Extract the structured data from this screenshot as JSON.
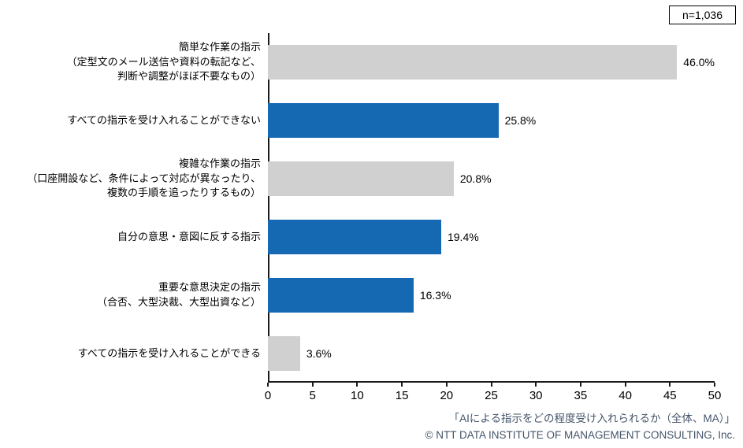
{
  "header": {
    "n_label": "n=1,036"
  },
  "chart_data": {
    "type": "bar",
    "orientation": "horizontal",
    "title": "",
    "xlabel": "",
    "ylabel": "",
    "xlim": [
      0,
      50
    ],
    "x_ticks": [
      0,
      5,
      10,
      15,
      20,
      25,
      30,
      35,
      40,
      45,
      50
    ],
    "grid": false,
    "legend": "none",
    "categories": [
      "簡単な作業の指示\n（定型文のメール送信や資料の転記など、\n判断や調整がほぼ不要なもの）",
      "すべての指示を受け入れることができない",
      "複雑な作業の指示\n（口座開設など、条件によって対応が異なったり、\n複数の手順を追ったりするもの）",
      "自分の意思・意図に反する指示",
      "重要な意思決定の指示\n（合否、大型決裁、大型出資など）",
      "すべての指示を受け入れることができる"
    ],
    "values": [
      46.0,
      25.8,
      20.8,
      19.4,
      16.3,
      3.6
    ],
    "value_labels": [
      "46.0%",
      "25.8%",
      "20.8%",
      "19.4%",
      "16.3%",
      "3.6%"
    ],
    "colors": [
      "gray",
      "blue",
      "gray",
      "blue",
      "blue",
      "gray"
    ],
    "palette": {
      "blue": "#1568b2",
      "gray": "#d0d0d0"
    }
  },
  "footer": {
    "caption": "「AIによる指示をどの程度受け入れられるか（全体、MA）」",
    "copyright": "© NTT DATA INSTITUTE OF MANAGEMENT CONSULTING, Inc."
  }
}
